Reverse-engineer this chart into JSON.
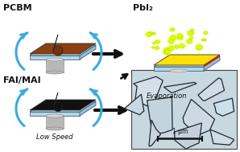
{
  "bg_color": "#ffffff",
  "top_left_label": "PCBM",
  "top_right_label": "PbI₂",
  "bottom_left_label": "FAI/MAI",
  "top_right_sublabel": "Evaporation",
  "bottom_left_sublabel": "Low Speed",
  "scale_bar_label": "1 μm",
  "pcbm_drop_color": "#7B3010",
  "pcbm_top_color": "#8B4010",
  "pbi2_top_color": "#FFE000",
  "pbi2_side_color": "#E8C800",
  "fai_top_color": "#111111",
  "substrate_color": "#C8E8F0",
  "substrate_front_color": "#B0D8E8",
  "substrate_right_color": "#90C0D8",
  "pedestal_color": "#B8B8B8",
  "pedestal_top_color": "#D8D8D8",
  "arrow_color": "#3AACDE",
  "black_arrow_color": "#111111",
  "red_line_color": "#CC2200",
  "dot_color": "#DDFF00",
  "dot_outline": "#AACC00",
  "sem_bg_color": "#C8D8E0",
  "sem_grain_light": "#D8E4EC",
  "sem_grain_mid": "#C0CCDA",
  "sem_crack_color": "#202830"
}
